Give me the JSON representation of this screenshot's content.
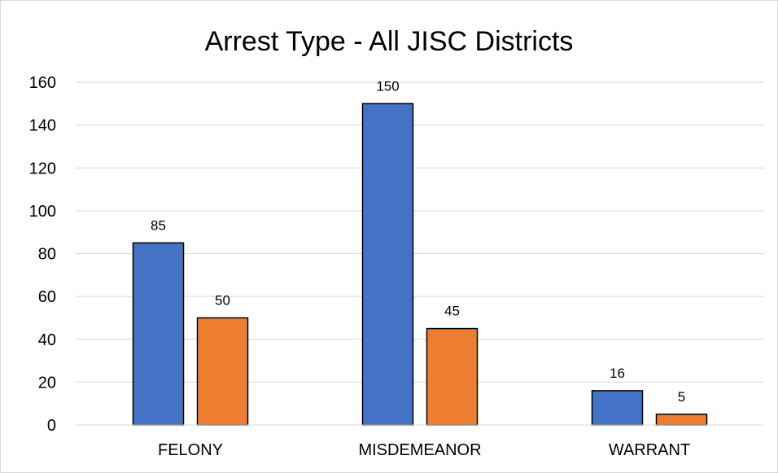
{
  "chart_data": {
    "type": "bar",
    "title": "Arrest Type - All JISC Districts",
    "xlabel": "",
    "ylabel": "",
    "categories": [
      "FELONY",
      "MISDEMEANOR",
      "WARRANT"
    ],
    "series": [
      {
        "values": [
          85,
          150,
          16
        ],
        "color": "#4472c4"
      },
      {
        "values": [
          50,
          45,
          5
        ],
        "color": "#ed7d31"
      }
    ],
    "ylim": [
      0,
      160
    ],
    "yticks": [
      0,
      20,
      40,
      60,
      80,
      100,
      120,
      140,
      160
    ],
    "grid": true,
    "legend": "none",
    "data_labels": true
  }
}
